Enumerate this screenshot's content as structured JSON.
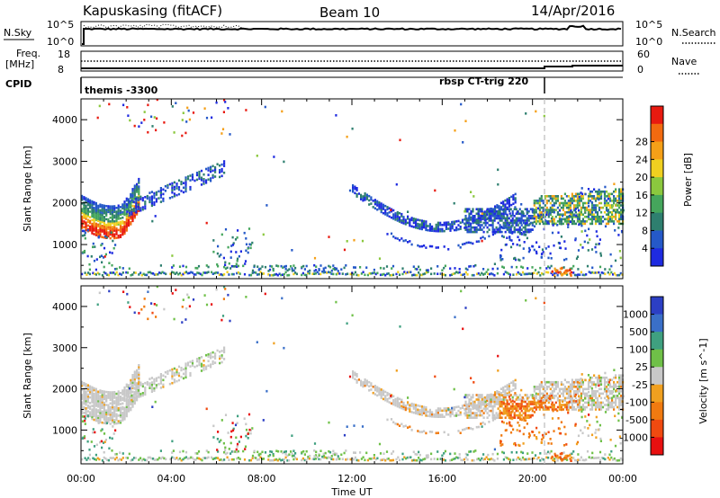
{
  "header": {
    "radar": "Kapuskasing (fitACF)",
    "beam": "Beam 10",
    "date": "14/Apr/2016"
  },
  "strips": {
    "nsky": {
      "label": "N.Sky",
      "tick_top": "10^5",
      "tick_bottom": "10^0",
      "right_label": "N.Search",
      "right_tick_top": "10^5",
      "right_tick_bottom": "10^0"
    },
    "freq": {
      "label_line1": "Freq.",
      "label_line2": "[MHz]",
      "tick_top": "18",
      "tick_bottom": "8",
      "right_label": "Nave",
      "right_tick_top": "60",
      "right_tick_bottom": "0"
    },
    "cpid": {
      "label": "CPID",
      "segments": [
        {
          "name": "themis -3300",
          "start_hour": 0,
          "end_hour": 20.6
        },
        {
          "name": "rbsp CT-trig 220",
          "start_hour": 20.6,
          "end_hour": 24
        }
      ]
    }
  },
  "chart_data": [
    {
      "type": "heatmap",
      "panel": "power",
      "x_unit": "hours UT",
      "xlim": [
        0,
        24
      ],
      "ylim": [
        180,
        4500
      ],
      "ylabel": "Slant Range [km]",
      "ytick_labels": [
        "1000",
        "2000",
        "3000",
        "4000"
      ],
      "colorbar": {
        "label": "Power [dB]",
        "ticks": [
          "4",
          "8",
          "12",
          "16",
          "20",
          "24",
          "28"
        ],
        "colors": [
          "#1e2be0",
          "#2559c8",
          "#2e7f6f",
          "#45a65c",
          "#8bc83e",
          "#f0d020",
          "#f5a018",
          "#f26a10",
          "#e81a10"
        ]
      },
      "echo_regions": [
        {
          "x0": 0.0,
          "x1": 2.2,
          "y0": 1400,
          "y1": 2200,
          "level": "high"
        },
        {
          "x0": 2.0,
          "x1": 6.2,
          "y0": 1600,
          "y1": 2800,
          "level": "low"
        },
        {
          "x0": 12.0,
          "x1": 19.0,
          "y0": 900,
          "y1": 2400,
          "level": "low"
        },
        {
          "x0": 17.0,
          "x1": 24.0,
          "y0": 1100,
          "y1": 2400,
          "level": "mixed"
        },
        {
          "x0": 0.0,
          "x1": 24.0,
          "y0": 180,
          "y1": 500,
          "level": "mixed"
        }
      ]
    },
    {
      "type": "heatmap",
      "panel": "velocity",
      "x_unit": "hours UT",
      "xlim": [
        0,
        24
      ],
      "ylim": [
        180,
        4500
      ],
      "ylabel": "Slant Range [km]",
      "xlabel": "Time UT",
      "xtick_labels": [
        "00:00",
        "04:00",
        "08:00",
        "12:00",
        "16:00",
        "20:00",
        "00:00"
      ],
      "ytick_labels": [
        "1000",
        "2000",
        "3000",
        "4000"
      ],
      "colorbar": {
        "label": "Velocity [m s^-1]",
        "ticks": [
          "1000",
          "500",
          "100",
          "25",
          "-25",
          "-100",
          "-500",
          "-1000"
        ],
        "colors": [
          "#2c3fc4",
          "#3a6fc8",
          "#3fa080",
          "#6fc048",
          "#c8c8c8",
          "#f0a020",
          "#f07a10",
          "#f04a10",
          "#e81010"
        ]
      }
    }
  ]
}
